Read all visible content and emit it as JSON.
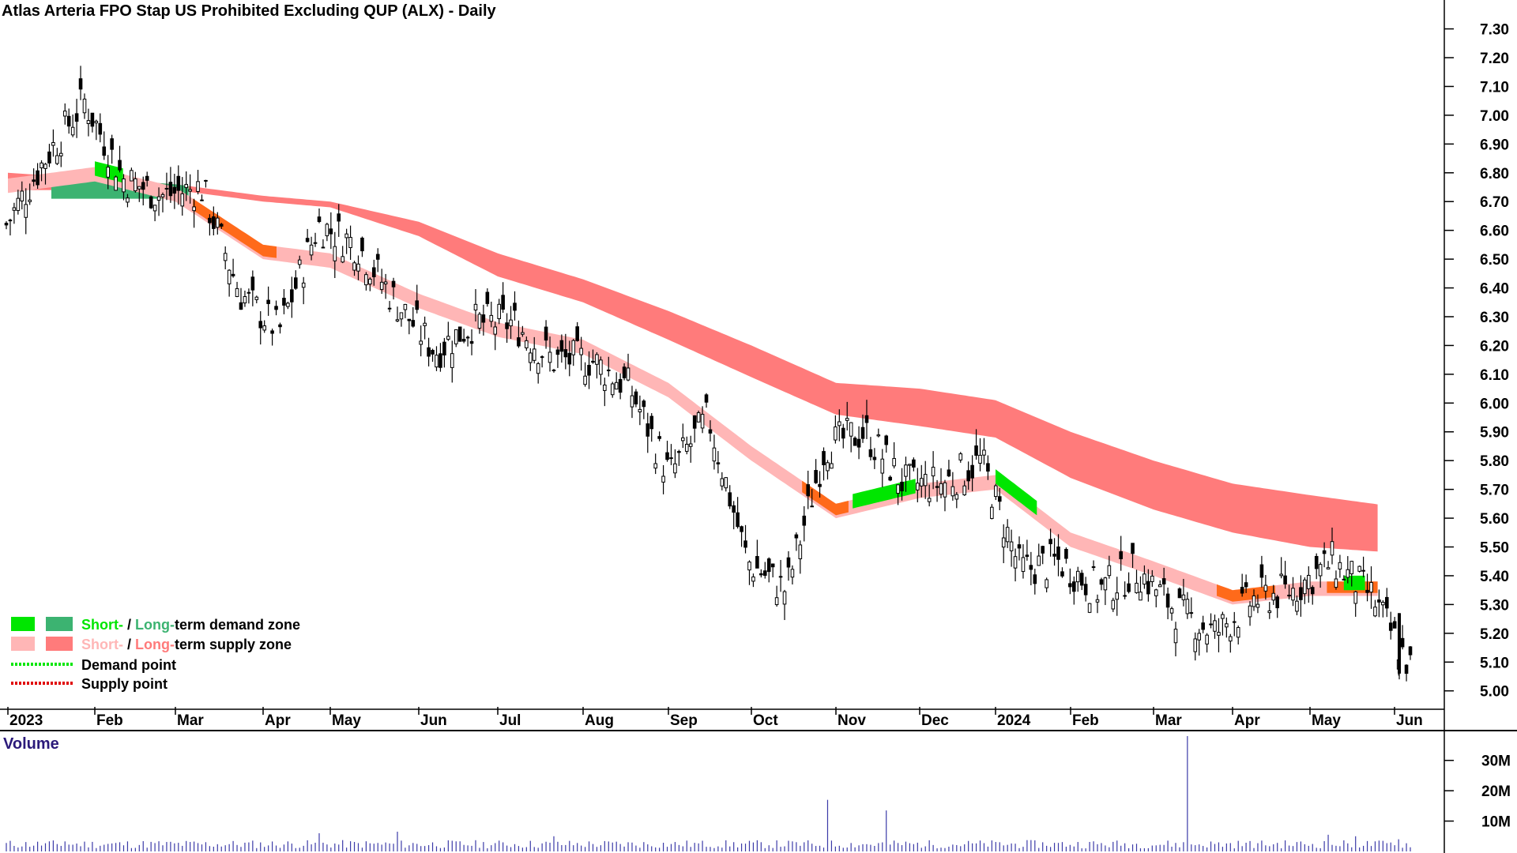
{
  "colors": {
    "candle": "#000000",
    "short_demand": "#00e600",
    "long_demand": "#3cb371",
    "short_supply": "#ffb6b6",
    "long_supply": "#ff7b7b",
    "orange_zone": "#ff6a1a",
    "volume_bar": "#3b3aa8",
    "volume_title": "#2b1a7a"
  },
  "chart_data": {
    "type": "candlestick",
    "title": "Atlas Arteria FPO Stap US Prohibited Excluding QUP (ALX) - Daily",
    "price_axis": {
      "ticks": [
        "7.30",
        "7.20",
        "7.10",
        "7.00",
        "6.90",
        "6.80",
        "6.70",
        "6.60",
        "6.50",
        "6.40",
        "6.30",
        "6.20",
        "6.10",
        "6.00",
        "5.90",
        "5.80",
        "5.70",
        "5.60",
        "5.50",
        "5.40",
        "5.30",
        "5.20",
        "5.10",
        "5.00"
      ],
      "range": [
        4.98,
        7.34
      ],
      "position": "right"
    },
    "time_axis": {
      "labels": [
        "2023",
        "Feb",
        "Mar",
        "Apr",
        "May",
        "Jun",
        "Jul",
        "Aug",
        "Sep",
        "Oct",
        "Nov",
        "Dec",
        "2024",
        "Feb",
        "Mar",
        "Apr",
        "May",
        "Jun"
      ],
      "label_month_index": [
        0,
        1,
        2,
        3,
        4,
        5,
        6,
        7,
        8,
        9,
        10,
        11,
        12,
        13,
        14,
        15,
        16,
        17
      ]
    },
    "price_anchors": [
      [
        "2023",
        6.62
      ],
      [
        "Jan-mid",
        6.85
      ],
      [
        "Feb",
        7.05
      ],
      [
        "Feb-mid",
        6.78
      ],
      [
        "Mar",
        6.72
      ],
      [
        "Mar-mid",
        6.75
      ],
      [
        "Apr",
        6.38
      ],
      [
        "Apr-mid",
        6.25
      ],
      [
        "May",
        6.62
      ],
      [
        "May-mid",
        6.55
      ],
      [
        "Jun",
        6.35
      ],
      [
        "Jun-mid",
        6.18
      ],
      [
        "Jul",
        6.28
      ],
      [
        "Jul-mid",
        6.28
      ],
      [
        "Aug",
        6.15
      ],
      [
        "Aug-mid",
        6.15
      ],
      [
        "Sep",
        6.05
      ],
      [
        "Sep-mid",
        5.75
      ],
      [
        "Oct",
        5.95
      ],
      [
        "Oct-mid",
        5.45
      ],
      [
        "Oct-end",
        5.35
      ],
      [
        "Nov",
        5.85
      ],
      [
        "Nov-mid",
        5.9
      ],
      [
        "Dec",
        5.72
      ],
      [
        "Dec-mid",
        5.72
      ],
      [
        "2024",
        5.8
      ],
      [
        "Jan-mid",
        5.42
      ],
      [
        "Feb",
        5.45
      ],
      [
        "Feb-mid",
        5.35
      ],
      [
        "Mar",
        5.42
      ],
      [
        "Mar-mid",
        5.28
      ],
      [
        "Apr",
        5.2
      ],
      [
        "Apr-mid",
        5.32
      ],
      [
        "May",
        5.35
      ],
      [
        "May-mid",
        5.45
      ],
      [
        "Jun",
        5.33
      ],
      [
        "last",
        5.08
      ]
    ],
    "zones": {
      "short_term_top": [
        [
          0,
          6.78
        ],
        [
          1,
          6.82
        ],
        [
          2,
          6.75
        ],
        [
          3,
          6.55
        ],
        [
          4,
          6.52
        ],
        [
          5,
          6.38
        ],
        [
          6,
          6.28
        ],
        [
          7,
          6.22
        ],
        [
          8,
          6.07
        ],
        [
          9,
          5.85
        ],
        [
          10,
          5.65
        ],
        [
          11,
          5.72
        ],
        [
          12,
          5.75
        ],
        [
          13,
          5.55
        ],
        [
          14,
          5.45
        ],
        [
          15,
          5.35
        ],
        [
          16,
          5.38
        ],
        [
          17,
          5.38
        ]
      ],
      "long_term_top": [
        [
          0,
          6.8
        ],
        [
          1,
          6.78
        ],
        [
          2,
          6.76
        ],
        [
          3,
          6.72
        ],
        [
          4,
          6.7
        ],
        [
          5,
          6.63
        ],
        [
          6,
          6.52
        ],
        [
          7,
          6.43
        ],
        [
          8,
          6.32
        ],
        [
          9,
          6.2
        ],
        [
          10,
          6.07
        ],
        [
          11,
          6.05
        ],
        [
          12,
          6.01
        ],
        [
          13,
          5.9
        ],
        [
          14,
          5.8
        ],
        [
          15,
          5.72
        ],
        [
          16,
          5.68
        ],
        [
          17,
          5.64
        ]
      ],
      "long_term_bottom": [
        [
          0,
          6.74
        ],
        [
          1,
          6.74
        ],
        [
          2,
          6.74
        ],
        [
          3,
          6.7
        ],
        [
          4,
          6.68
        ],
        [
          5,
          6.58
        ],
        [
          6,
          6.44
        ],
        [
          7,
          6.35
        ],
        [
          8,
          6.22
        ],
        [
          9,
          6.09
        ],
        [
          10,
          5.96
        ],
        [
          11,
          5.92
        ],
        [
          12,
          5.88
        ],
        [
          13,
          5.74
        ],
        [
          14,
          5.63
        ],
        [
          15,
          5.55
        ],
        [
          16,
          5.5
        ],
        [
          17,
          5.48
        ]
      ]
    },
    "volume": {
      "label": "Volume",
      "ticks": [
        "30M",
        "20M",
        "10M"
      ],
      "range": [
        0,
        38
      ],
      "spikes_millions": [
        [
          "Jan-mid",
          3.3
        ],
        [
          "Mar-mid",
          6.0
        ],
        [
          "May",
          6.5
        ],
        [
          "Jun-mid",
          5.0
        ],
        [
          "Sep-mid",
          17.0
        ],
        [
          "Oct",
          13.5
        ],
        [
          "Dec-mid",
          38.0
        ],
        [
          "Feb-mid",
          5.0
        ],
        [
          "May-mid",
          6.0
        ],
        [
          "Jun",
          4.0
        ]
      ],
      "typical_millions": 2.5
    },
    "legend": {
      "items": [
        {
          "short_label": "Short-",
          "sep": " / ",
          "long_label": "Long-",
          "rest": "term demand zone",
          "type": "demand"
        },
        {
          "short_label": "Short-",
          "sep": " / ",
          "long_label": "Long-",
          "rest": "term supply zone",
          "type": "supply"
        },
        {
          "label": "Demand point",
          "type": "demand-point"
        },
        {
          "label": "Supply point",
          "type": "supply-point"
        }
      ],
      "position": "bottom-left"
    }
  }
}
